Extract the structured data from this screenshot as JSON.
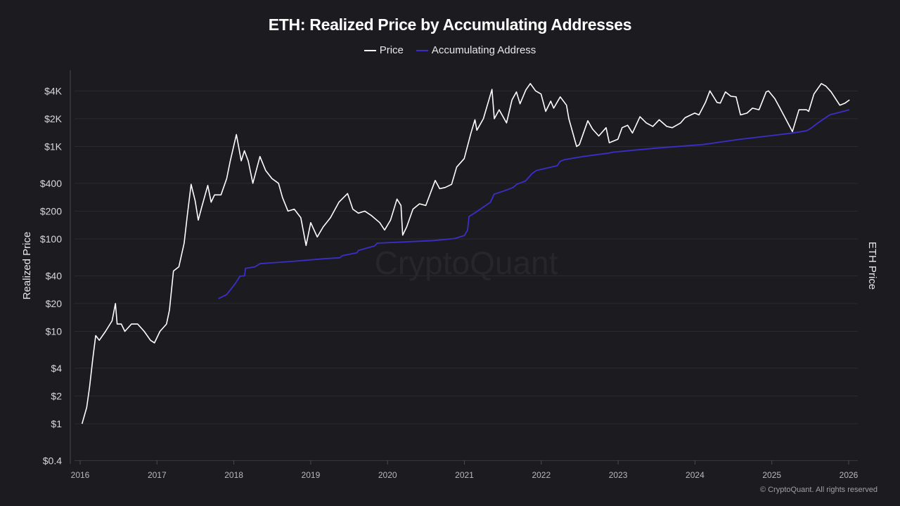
{
  "chart_data": {
    "type": "line",
    "title": "ETH: Realized Price by Accumulating Addresses",
    "ylabel": "Realized Price",
    "y2label": "ETH Price",
    "yscale": "log",
    "ylim": [
      0.4,
      6700
    ],
    "xlim": [
      "2016-01-01",
      "2026-02-01"
    ],
    "grid": true,
    "legend_position": "top-center",
    "y_ticks": [
      {
        "v": 4000,
        "label": "$4K"
      },
      {
        "v": 2000,
        "label": "$2K"
      },
      {
        "v": 1000,
        "label": "$1K"
      },
      {
        "v": 400,
        "label": "$400"
      },
      {
        "v": 200,
        "label": "$200"
      },
      {
        "v": 100,
        "label": "$100"
      },
      {
        "v": 40,
        "label": "$40"
      },
      {
        "v": 20,
        "label": "$20"
      },
      {
        "v": 10,
        "label": "$10"
      },
      {
        "v": 4,
        "label": "$4"
      },
      {
        "v": 2,
        "label": "$2"
      },
      {
        "v": 1,
        "label": "$1"
      },
      {
        "v": 0.4,
        "label": "$0.4"
      }
    ],
    "x_ticks": [
      "2016",
      "2017",
      "2018",
      "2019",
      "2020",
      "2021",
      "2022",
      "2023",
      "2024",
      "2025",
      "2026"
    ],
    "series": [
      {
        "name": "Price",
        "color": "#ffffff",
        "points": [
          [
            "2016-01-10",
            1.0
          ],
          [
            "2016-02-01",
            1.5
          ],
          [
            "2016-02-15",
            2.5
          ],
          [
            "2016-03-01",
            5
          ],
          [
            "2016-03-15",
            9
          ],
          [
            "2016-04-01",
            8
          ],
          [
            "2016-05-01",
            10
          ],
          [
            "2016-06-01",
            13
          ],
          [
            "2016-06-17",
            20
          ],
          [
            "2016-06-25",
            12
          ],
          [
            "2016-07-15",
            12
          ],
          [
            "2016-08-01",
            10
          ],
          [
            "2016-09-01",
            12
          ],
          [
            "2016-10-01",
            12
          ],
          [
            "2016-11-01",
            10
          ],
          [
            "2016-12-01",
            8
          ],
          [
            "2016-12-20",
            7.5
          ],
          [
            "2017-01-15",
            10
          ],
          [
            "2017-02-15",
            12
          ],
          [
            "2017-03-01",
            17
          ],
          [
            "2017-03-20",
            45
          ],
          [
            "2017-04-15",
            50
          ],
          [
            "2017-05-10",
            90
          ],
          [
            "2017-05-25",
            180
          ],
          [
            "2017-06-12",
            390
          ],
          [
            "2017-07-01",
            260
          ],
          [
            "2017-07-16",
            160
          ],
          [
            "2017-08-01",
            220
          ],
          [
            "2017-08-30",
            380
          ],
          [
            "2017-09-15",
            250
          ],
          [
            "2017-10-01",
            300
          ],
          [
            "2017-11-01",
            300
          ],
          [
            "2017-11-28",
            450
          ],
          [
            "2017-12-15",
            700
          ],
          [
            "2018-01-13",
            1350
          ],
          [
            "2018-02-05",
            700
          ],
          [
            "2018-02-20",
            900
          ],
          [
            "2018-03-10",
            700
          ],
          [
            "2018-04-01",
            400
          ],
          [
            "2018-05-05",
            780
          ],
          [
            "2018-06-01",
            550
          ],
          [
            "2018-07-01",
            450
          ],
          [
            "2018-08-01",
            400
          ],
          [
            "2018-08-20",
            280
          ],
          [
            "2018-09-15",
            200
          ],
          [
            "2018-10-15",
            210
          ],
          [
            "2018-11-15",
            170
          ],
          [
            "2018-12-10",
            85
          ],
          [
            "2019-01-01",
            150
          ],
          [
            "2019-02-01",
            105
          ],
          [
            "2019-03-01",
            135
          ],
          [
            "2019-04-05",
            170
          ],
          [
            "2019-05-15",
            250
          ],
          [
            "2019-06-25",
            310
          ],
          [
            "2019-07-20",
            210
          ],
          [
            "2019-08-15",
            190
          ],
          [
            "2019-09-15",
            200
          ],
          [
            "2019-10-15",
            180
          ],
          [
            "2019-11-25",
            150
          ],
          [
            "2019-12-18",
            125
          ],
          [
            "2020-01-15",
            160
          ],
          [
            "2020-02-15",
            270
          ],
          [
            "2020-03-05",
            230
          ],
          [
            "2020-03-13",
            110
          ],
          [
            "2020-04-01",
            135
          ],
          [
            "2020-05-01",
            210
          ],
          [
            "2020-06-01",
            240
          ],
          [
            "2020-07-01",
            230
          ],
          [
            "2020-08-15",
            430
          ],
          [
            "2020-09-05",
            350
          ],
          [
            "2020-10-01",
            360
          ],
          [
            "2020-11-01",
            390
          ],
          [
            "2020-11-25",
            600
          ],
          [
            "2020-12-31",
            740
          ],
          [
            "2021-02-01",
            1400
          ],
          [
            "2021-02-20",
            1950
          ],
          [
            "2021-03-01",
            1500
          ],
          [
            "2021-04-01",
            2000
          ],
          [
            "2021-05-12",
            4150
          ],
          [
            "2021-05-23",
            2000
          ],
          [
            "2021-06-15",
            2500
          ],
          [
            "2021-07-20",
            1800
          ],
          [
            "2021-08-15",
            3200
          ],
          [
            "2021-09-05",
            3900
          ],
          [
            "2021-09-22",
            2900
          ],
          [
            "2021-10-20",
            4100
          ],
          [
            "2021-11-10",
            4800
          ],
          [
            "2021-12-05",
            4000
          ],
          [
            "2021-12-31",
            3700
          ],
          [
            "2022-01-22",
            2400
          ],
          [
            "2022-02-15",
            3100
          ],
          [
            "2022-03-01",
            2600
          ],
          [
            "2022-04-01",
            3450
          ],
          [
            "2022-05-01",
            2800
          ],
          [
            "2022-05-12",
            2000
          ],
          [
            "2022-06-18",
            1000
          ],
          [
            "2022-07-01",
            1050
          ],
          [
            "2022-08-10",
            1900
          ],
          [
            "2022-09-01",
            1550
          ],
          [
            "2022-10-01",
            1300
          ],
          [
            "2022-11-05",
            1600
          ],
          [
            "2022-11-20",
            1100
          ],
          [
            "2022-12-31",
            1200
          ],
          [
            "2023-01-20",
            1600
          ],
          [
            "2023-02-15",
            1700
          ],
          [
            "2023-03-10",
            1400
          ],
          [
            "2023-04-15",
            2100
          ],
          [
            "2023-05-15",
            1800
          ],
          [
            "2023-06-15",
            1650
          ],
          [
            "2023-07-15",
            1950
          ],
          [
            "2023-08-20",
            1650
          ],
          [
            "2023-09-15",
            1600
          ],
          [
            "2023-10-25",
            1800
          ],
          [
            "2023-11-15",
            2050
          ],
          [
            "2023-12-31",
            2300
          ],
          [
            "2024-01-20",
            2200
          ],
          [
            "2024-02-20",
            3000
          ],
          [
            "2024-03-12",
            4000
          ],
          [
            "2024-04-15",
            3000
          ],
          [
            "2024-05-01",
            2950
          ],
          [
            "2024-05-25",
            3900
          ],
          [
            "2024-06-20",
            3500
          ],
          [
            "2024-07-15",
            3450
          ],
          [
            "2024-08-05",
            2200
          ],
          [
            "2024-09-05",
            2300
          ],
          [
            "2024-10-01",
            2600
          ],
          [
            "2024-11-01",
            2500
          ],
          [
            "2024-12-05",
            3900
          ],
          [
            "2024-12-16",
            4000
          ],
          [
            "2025-01-15",
            3300
          ],
          [
            "2025-02-05",
            2700
          ],
          [
            "2025-03-10",
            1950
          ],
          [
            "2025-04-09",
            1450
          ],
          [
            "2025-05-10",
            2500
          ],
          [
            "2025-06-15",
            2500
          ],
          [
            "2025-06-25",
            2400
          ],
          [
            "2025-07-20",
            3700
          ],
          [
            "2025-08-24",
            4800
          ],
          [
            "2025-09-15",
            4500
          ],
          [
            "2025-10-10",
            3900
          ],
          [
            "2025-11-20",
            2800
          ],
          [
            "2025-12-15",
            2950
          ],
          [
            "2026-01-05",
            3200
          ]
        ]
      },
      {
        "name": "Accumulating Address",
        "color": "#3b2fc9",
        "points": [
          [
            "2017-10-20",
            22.6
          ],
          [
            "2017-11-28",
            25
          ],
          [
            "2018-01-08",
            33
          ],
          [
            "2018-01-30",
            39.5
          ],
          [
            "2018-02-21",
            40
          ],
          [
            "2018-02-25",
            48
          ],
          [
            "2018-04-12",
            50
          ],
          [
            "2018-05-05",
            54
          ],
          [
            "2018-09-27",
            57
          ],
          [
            "2019-03-03",
            61
          ],
          [
            "2019-05-19",
            62.5
          ],
          [
            "2019-06-01",
            66
          ],
          [
            "2019-08-09",
            71
          ],
          [
            "2019-08-15",
            75
          ],
          [
            "2019-10-31",
            84
          ],
          [
            "2019-11-13",
            90
          ],
          [
            "2020-08-07",
            96
          ],
          [
            "2020-11-16",
            101
          ],
          [
            "2021-01-01",
            109
          ],
          [
            "2021-01-16",
            125
          ],
          [
            "2021-01-23",
            175
          ],
          [
            "2021-02-25",
            195
          ],
          [
            "2021-03-30",
            220
          ],
          [
            "2021-05-05",
            250
          ],
          [
            "2021-05-22",
            305
          ],
          [
            "2021-07-07",
            330
          ],
          [
            "2021-08-20",
            360
          ],
          [
            "2021-09-06",
            390
          ],
          [
            "2021-10-19",
            425
          ],
          [
            "2021-11-18",
            510
          ],
          [
            "2021-12-09",
            550
          ],
          [
            "2022-03-18",
            620
          ],
          [
            "2022-03-31",
            690
          ],
          [
            "2022-04-20",
            720
          ],
          [
            "2022-07-18",
            780
          ],
          [
            "2022-11-19",
            850
          ],
          [
            "2022-12-09",
            870
          ],
          [
            "2023-06-28",
            960
          ],
          [
            "2024-02-09",
            1050
          ],
          [
            "2024-08-04",
            1200
          ],
          [
            "2024-12-15",
            1300
          ],
          [
            "2025-04-09",
            1400
          ],
          [
            "2025-06-15",
            1480
          ],
          [
            "2025-07-05",
            1570
          ],
          [
            "2025-08-08",
            1800
          ],
          [
            "2025-10-03",
            2200
          ],
          [
            "2026-01-04",
            2500
          ]
        ]
      }
    ],
    "watermark": "CryptoQuant"
  },
  "legend": [
    {
      "label": "Price",
      "color": "#ffffff"
    },
    {
      "label": "Accumulating Address",
      "color": "#3b2fc9"
    }
  ],
  "copyright": "© CryptoQuant. All rights reserved"
}
